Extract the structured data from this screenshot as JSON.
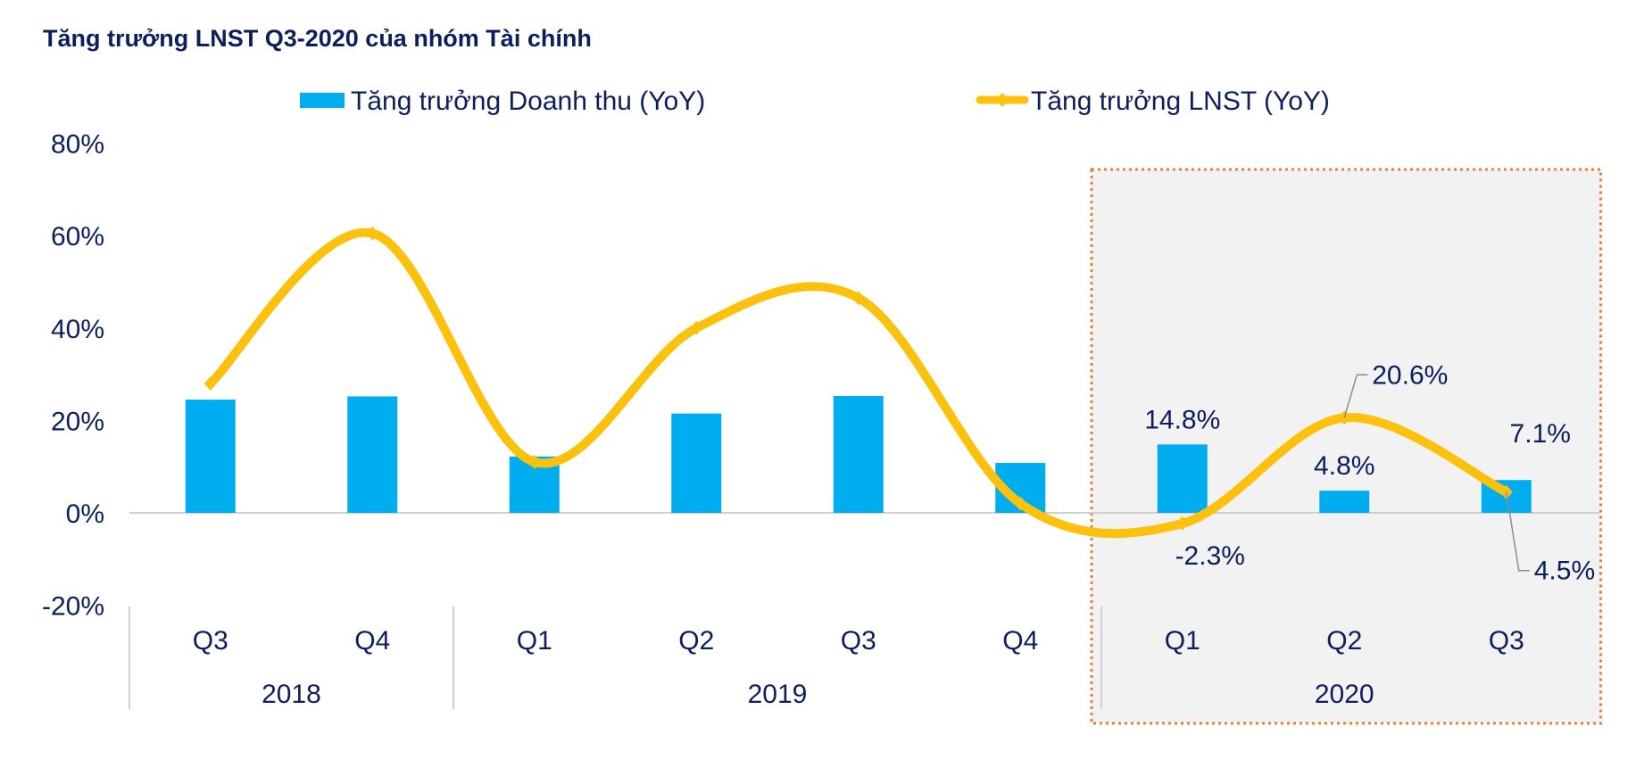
{
  "chart_data": {
    "type": "bar",
    "title": "Tăng trưởng LNST Q3-2020 của nhóm Tài chính",
    "categories": [
      "Q3",
      "Q4",
      "Q1",
      "Q2",
      "Q3",
      "Q4",
      "Q1",
      "Q2",
      "Q3"
    ],
    "groups": [
      {
        "label": "2018",
        "count": 2
      },
      {
        "label": "2019",
        "count": 4
      },
      {
        "label": "2020",
        "count": 3
      }
    ],
    "highlight_group": "2020",
    "series": [
      {
        "name": "Tăng trưởng Doanh thu (YoY)",
        "type": "bar",
        "color": "#00adef",
        "values": [
          24.5,
          25.2,
          12.2,
          21.5,
          25.3,
          10.8,
          14.8,
          4.8,
          7.1
        ]
      },
      {
        "name": "Tăng trưởng LNST (YoY)",
        "type": "line",
        "color": "#fcc10d",
        "values": [
          28.0,
          60.5,
          11.0,
          40.0,
          46.5,
          2.0,
          -2.3,
          20.6,
          4.5
        ]
      }
    ],
    "data_labels": {
      "bar": [
        {
          "index": 6,
          "text": "14.8%"
        },
        {
          "index": 7,
          "text": "4.8%"
        },
        {
          "index": 8,
          "text": "7.1%"
        }
      ],
      "line": [
        {
          "index": 6,
          "text": "-2.3%"
        },
        {
          "index": 7,
          "text": "20.6%"
        },
        {
          "index": 8,
          "text": "4.5%"
        }
      ]
    },
    "ylim": [
      -20,
      80
    ],
    "yticks": [
      -20,
      0,
      20,
      40,
      60,
      80
    ],
    "ytick_labels": [
      "-20%",
      "0%",
      "20%",
      "40%",
      "60%",
      "80%"
    ],
    "legend_position": "top-center",
    "xlabel": "",
    "ylabel": ""
  }
}
